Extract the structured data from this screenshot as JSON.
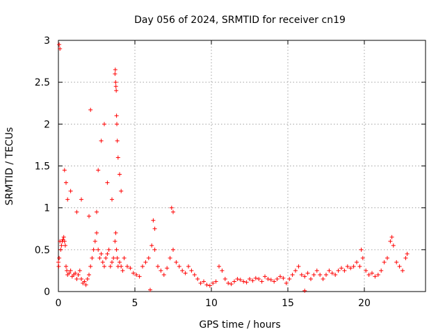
{
  "chart_data": {
    "type": "scatter",
    "title": "Day 056 of 2024, SRMTID for receiver cn19",
    "xlabel": "GPS time / hours",
    "ylabel": "SRMTID / TECUs",
    "xlim": [
      0,
      24
    ],
    "ylim": [
      0,
      3
    ],
    "grid": true,
    "marker": "+",
    "color": "#ff0000",
    "xticks": [
      0,
      5,
      10,
      15,
      20
    ],
    "yticks": [
      0,
      0.5,
      1,
      1.5,
      2,
      2.5,
      3
    ],
    "xtick_labels": [
      "0",
      "5",
      "10",
      "15",
      "20"
    ],
    "ytick_labels": [
      "0",
      "0.5",
      "1",
      "1.5",
      "2",
      "2.5",
      "3"
    ],
    "series": [
      {
        "name": "cn19",
        "x": [
          0.0,
          0.02,
          0.05,
          0.1,
          0.15,
          0.2,
          0.25,
          0.3,
          0.35,
          0.4,
          0.45,
          0.5,
          0.55,
          0.6,
          0.7,
          0.8,
          0.9,
          1.0,
          1.1,
          1.2,
          1.3,
          1.4,
          1.5,
          1.6,
          1.7,
          1.8,
          1.9,
          2.0,
          2.1,
          2.2,
          2.3,
          2.4,
          2.5,
          2.6,
          2.7,
          2.8,
          2.9,
          3.0,
          3.1,
          3.2,
          3.3,
          3.4,
          3.5,
          3.6,
          3.7,
          3.75,
          3.8,
          3.85,
          3.9,
          4.0,
          4.1,
          4.2,
          4.3,
          4.5,
          4.7,
          4.9,
          5.1,
          5.3,
          5.5,
          5.7,
          5.9,
          6.1,
          6.3,
          6.5,
          6.7,
          6.9,
          7.1,
          7.3,
          7.5,
          7.7,
          7.9,
          8.1,
          8.3,
          8.5,
          8.7,
          8.9,
          9.1,
          9.3,
          9.5,
          9.7,
          9.9,
          10.1,
          10.3,
          10.5,
          10.7,
          10.9,
          11.1,
          11.3,
          11.5,
          11.7,
          11.9,
          12.1,
          12.3,
          12.5,
          12.7,
          12.9,
          13.1,
          13.3,
          13.5,
          13.7,
          13.9,
          14.1,
          14.3,
          14.5,
          14.7,
          14.9,
          15.1,
          15.3,
          15.5,
          15.7,
          15.9,
          16.1,
          16.3,
          16.5,
          16.7,
          16.9,
          17.1,
          17.3,
          17.5,
          17.7,
          17.9,
          18.1,
          18.3,
          18.5,
          18.7,
          18.9,
          19.1,
          19.3,
          19.5,
          19.7,
          19.9,
          20.1,
          20.3,
          20.5,
          20.7,
          20.9,
          21.1,
          21.3,
          21.5,
          21.7,
          21.9,
          22.1,
          22.3,
          22.5,
          22.7,
          22.8,
          0.05,
          0.1,
          0.4,
          0.5,
          0.6,
          0.8,
          1.2,
          1.5,
          2.1,
          2.5,
          2.6,
          2.8,
          3.0,
          3.2,
          3.5,
          3.7,
          3.72,
          3.74,
          3.76,
          3.78,
          3.8,
          3.82,
          3.85,
          3.9,
          4.0,
          4.1,
          6.0,
          16.1,
          7.4,
          7.5,
          6.2,
          6.3,
          19.8,
          21.8,
          2.0
        ],
        "y": [
          0.35,
          0.3,
          0.4,
          0.6,
          0.5,
          0.55,
          0.6,
          0.62,
          0.65,
          0.6,
          0.55,
          0.3,
          0.25,
          0.2,
          0.22,
          0.25,
          0.18,
          0.2,
          0.22,
          0.15,
          0.2,
          0.25,
          0.15,
          0.1,
          0.12,
          0.08,
          0.15,
          0.2,
          0.3,
          0.4,
          0.5,
          0.6,
          0.7,
          0.5,
          0.4,
          0.45,
          0.35,
          0.3,
          0.4,
          0.45,
          0.5,
          0.3,
          0.35,
          0.4,
          0.6,
          0.7,
          0.5,
          0.4,
          0.3,
          0.35,
          0.3,
          0.25,
          0.4,
          0.3,
          0.28,
          0.22,
          0.2,
          0.18,
          0.3,
          0.35,
          0.4,
          0.55,
          0.5,
          0.3,
          0.25,
          0.2,
          0.28,
          0.4,
          0.5,
          0.35,
          0.3,
          0.25,
          0.22,
          0.3,
          0.25,
          0.2,
          0.15,
          0.1,
          0.12,
          0.08,
          0.07,
          0.1,
          0.12,
          0.3,
          0.25,
          0.15,
          0.1,
          0.09,
          0.12,
          0.15,
          0.14,
          0.12,
          0.11,
          0.15,
          0.13,
          0.16,
          0.15,
          0.12,
          0.18,
          0.15,
          0.14,
          0.12,
          0.15,
          0.18,
          0.16,
          0.1,
          0.15,
          0.2,
          0.25,
          0.3,
          0.2,
          0.18,
          0.22,
          0.15,
          0.2,
          0.25,
          0.2,
          0.15,
          0.2,
          0.25,
          0.22,
          0.2,
          0.25,
          0.28,
          0.25,
          0.3,
          0.28,
          0.3,
          0.35,
          0.3,
          0.4,
          0.25,
          0.2,
          0.22,
          0.18,
          0.2,
          0.25,
          0.35,
          0.4,
          0.6,
          0.55,
          0.35,
          0.3,
          0.25,
          0.4,
          0.45,
          2.95,
          2.9,
          1.45,
          1.3,
          1.1,
          1.2,
          0.95,
          1.1,
          2.17,
          0.95,
          1.45,
          1.8,
          2.0,
          1.3,
          1.1,
          2.6,
          2.65,
          2.5,
          2.45,
          2.4,
          2.1,
          2.0,
          1.8,
          1.6,
          1.4,
          1.2,
          0.02,
          0.01,
          1.0,
          0.95,
          0.85,
          0.75,
          0.5,
          0.65,
          0.9
        ]
      }
    ]
  }
}
